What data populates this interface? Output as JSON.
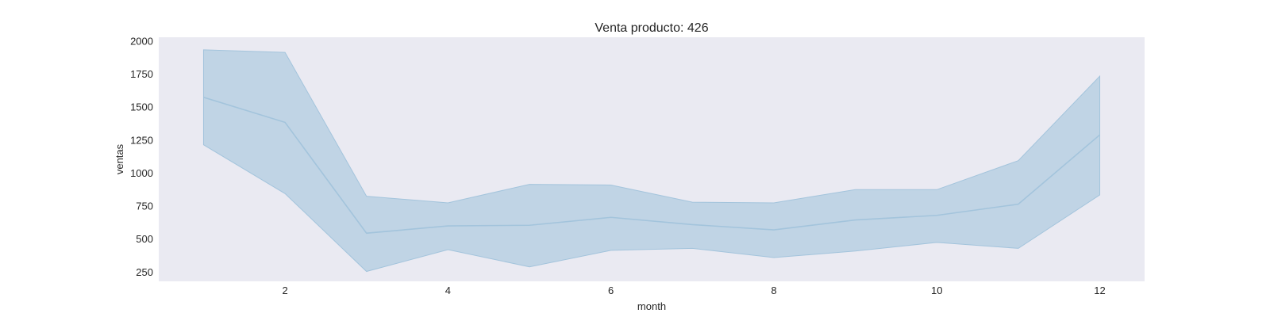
{
  "chart_data": {
    "type": "line",
    "title": "Venta producto: 426",
    "xlabel": "month",
    "ylabel": "ventas",
    "xlim": [
      0.45,
      12.55
    ],
    "ylim": [
      180,
      2030
    ],
    "xticks": [
      2,
      4,
      6,
      8,
      10,
      12
    ],
    "yticks": [
      250,
      500,
      750,
      1000,
      1250,
      1500,
      1750,
      2000
    ],
    "grid": false,
    "plot_background": "#eaeaf2",
    "series": [
      {
        "color": "#a3c4dc",
        "x": [
          1,
          2,
          3,
          4,
          5,
          6,
          7,
          8,
          9,
          10,
          11,
          12
        ],
        "y": [
          1575,
          1385,
          545,
          600,
          605,
          665,
          610,
          570,
          645,
          680,
          765,
          1290
        ],
        "ci_lower": [
          1215,
          845,
          255,
          420,
          290,
          415,
          430,
          360,
          410,
          475,
          430,
          835
        ],
        "ci_upper": [
          1935,
          1915,
          825,
          775,
          915,
          910,
          780,
          775,
          875,
          875,
          1095,
          1735
        ]
      }
    ]
  }
}
